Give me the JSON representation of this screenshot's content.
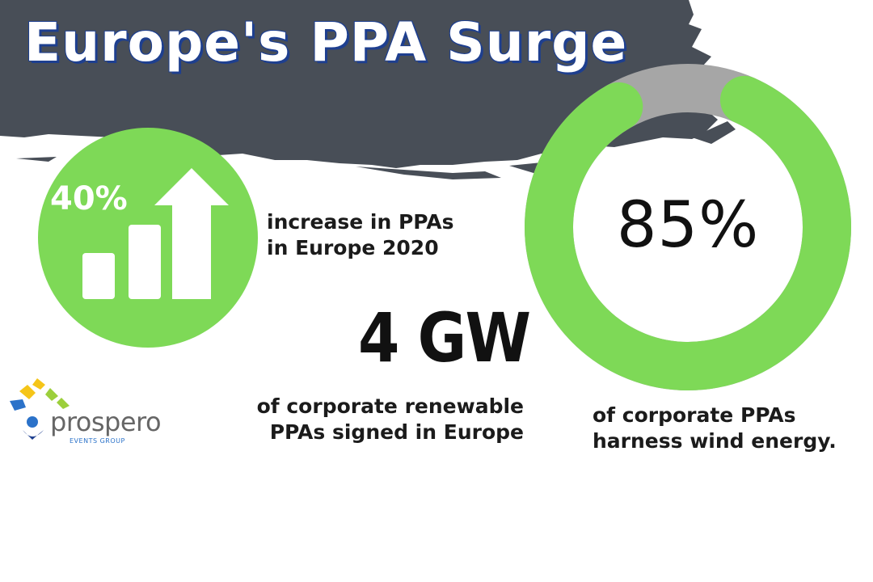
{
  "title": "Europe's PPA Surge",
  "stats": [
    {
      "value": "40%",
      "label_lines": [
        "increase in PPAs",
        "in Europe 2020"
      ]
    },
    {
      "value": "4 GW",
      "label_lines": [
        "of corporate renewable",
        "PPAs signed in Europe"
      ]
    },
    {
      "value": "85%",
      "fraction": 0.85,
      "label_lines": [
        "of corporate PPAs",
        "harness wind energy."
      ]
    }
  ],
  "logo": {
    "name": "prospero",
    "subtitle": "EVENTS GROUP"
  },
  "icons": {
    "growth": "bar-chart-up-arrow-icon",
    "donut": "wind-share-donut"
  },
  "colors": {
    "banner": "#484e57",
    "green": "#7ed957",
    "gray": "#a6a6a6",
    "title_shadow": "#1e3f8f",
    "logo_blue": "#2b72c9",
    "logo_yellow": "#f5c518",
    "logo_lime": "#9ccf3c"
  }
}
